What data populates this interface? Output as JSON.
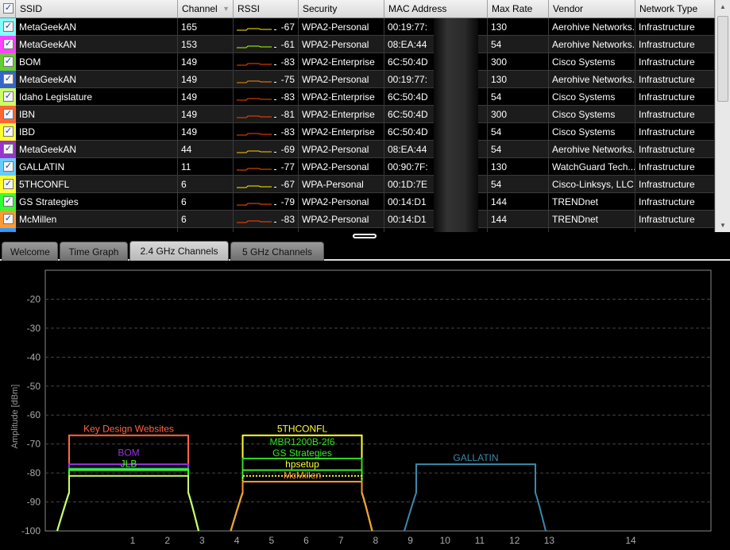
{
  "table": {
    "columns": [
      "SSID",
      "Channel",
      "RSSI",
      "Security",
      "MAC Address",
      "Max Rate",
      "Vendor",
      "Network Type"
    ],
    "rows": [
      {
        "color": "#80ffff",
        "ssid": "MetaGeekAN",
        "channel": "165",
        "rssi": "-67",
        "spark": "#ffee00",
        "security": "WPA2-Personal",
        "mac": "00:19:77:",
        "rate": "130",
        "vendor": "Aerohive Networks...",
        "type": "Infrastructure"
      },
      {
        "color": "#ff44ff",
        "ssid": "MetaGeekAN",
        "channel": "153",
        "rssi": "-61",
        "spark": "#aaff00",
        "security": "WPA2-Personal",
        "mac": "08:EA:44",
        "rate": "54",
        "vendor": "Aerohive Networks...",
        "type": "Infrastructure"
      },
      {
        "color": "#66cc33",
        "ssid": "BOM",
        "channel": "149",
        "rssi": "-83",
        "spark": "#ff4400",
        "security": "WPA2-Enterprise",
        "mac": "6C:50:4D",
        "rate": "300",
        "vendor": "Cisco Systems",
        "type": "Infrastructure"
      },
      {
        "color": "#3366cc",
        "ssid": "MetaGeekAN",
        "channel": "149",
        "rssi": "-75",
        "spark": "#ff8800",
        "security": "WPA2-Personal",
        "mac": "00:19:77:",
        "rate": "130",
        "vendor": "Aerohive Networks...",
        "type": "Infrastructure"
      },
      {
        "color": "#ccff66",
        "ssid": "Idaho Legislature",
        "channel": "149",
        "rssi": "-83",
        "spark": "#ff4400",
        "security": "WPA2-Enterprise",
        "mac": "6C:50:4D",
        "rate": "54",
        "vendor": "Cisco Systems",
        "type": "Infrastructure"
      },
      {
        "color": "#ff6633",
        "ssid": "IBN",
        "channel": "149",
        "rssi": "-81",
        "spark": "#ff4400",
        "security": "WPA2-Enterprise",
        "mac": "6C:50:4D",
        "rate": "300",
        "vendor": "Cisco Systems",
        "type": "Infrastructure"
      },
      {
        "color": "#ffff33",
        "ssid": "IBD",
        "channel": "149",
        "rssi": "-83",
        "spark": "#ff4400",
        "security": "WPA2-Enterprise",
        "mac": "6C:50:4D",
        "rate": "54",
        "vendor": "Cisco Systems",
        "type": "Infrastructure"
      },
      {
        "color": "#9933cc",
        "ssid": "MetaGeekAN",
        "channel": "44",
        "rssi": "-69",
        "spark": "#ffcc00",
        "security": "WPA2-Personal",
        "mac": "08:EA:44",
        "rate": "54",
        "vendor": "Aerohive Networks...",
        "type": "Infrastructure"
      },
      {
        "color": "#66ccff",
        "ssid": "GALLATIN",
        "channel": "11",
        "rssi": "-77",
        "spark": "#ff5500",
        "security": "WPA2-Personal",
        "mac": "00:90:7F:",
        "rate": "130",
        "vendor": "WatchGuard Tech...",
        "type": "Infrastructure"
      },
      {
        "color": "#ffff33",
        "ssid": "5THCONFL",
        "channel": "6",
        "rssi": "-67",
        "spark": "#ffee00",
        "security": "WPA-Personal",
        "mac": "00:1D:7E",
        "rate": "54",
        "vendor": "Cisco-Linksys, LLC",
        "type": "Infrastructure"
      },
      {
        "color": "#33ff33",
        "ssid": "GS Strategies",
        "channel": "6",
        "rssi": "-79",
        "spark": "#ff5500",
        "security": "WPA2-Personal",
        "mac": "00:14:D1",
        "rate": "144",
        "vendor": "TRENDnet",
        "type": "Infrastructure"
      },
      {
        "color": "#ff9933",
        "ssid": "McMillen",
        "channel": "6",
        "rssi": "-83",
        "spark": "#ff4400",
        "security": "WPA2-Personal",
        "mac": "00:14:D1",
        "rate": "144",
        "vendor": "TRENDnet",
        "type": "Infrastructure"
      },
      {
        "color": "#3399ff",
        "ssid": "",
        "channel": "",
        "rssi": "",
        "spark": "",
        "security": "",
        "mac": "",
        "rate": "",
        "vendor": "",
        "type": ""
      }
    ]
  },
  "tabs": [
    {
      "label": "Welcome"
    },
    {
      "label": "Time Graph"
    },
    {
      "label": "2.4 GHz Channels",
      "active": true
    },
    {
      "label": "5 GHz Channels"
    }
  ],
  "chart_data": {
    "type": "area",
    "ylabel": "Amplitude [dBm]",
    "ylim": [
      -100,
      -10
    ],
    "yticks": [
      -20,
      -30,
      -40,
      -50,
      -60,
      -70,
      -80,
      -90,
      -100
    ],
    "xticks": [
      1,
      2,
      3,
      4,
      5,
      6,
      7,
      8,
      9,
      10,
      11,
      12,
      13,
      14
    ],
    "grid": true,
    "networks": [
      {
        "ssid": "Key Design Websites",
        "channel": 1,
        "rssi": -67,
        "color": "#ff6644"
      },
      {
        "ssid": "BOM",
        "channel": 1,
        "rssi": -77,
        "color": "#9933dd"
      },
      {
        "ssid": "",
        "channel": 1,
        "rssi": -78.5,
        "color": "#33cc66"
      },
      {
        "ssid": "",
        "channel": 1,
        "rssi": -79,
        "color": "#3388dd"
      },
      {
        "ssid": "JLB",
        "channel": 1,
        "rssi": -79,
        "color": "#44ff22"
      },
      {
        "ssid": "",
        "channel": 1,
        "rssi": -81,
        "color": "#ccff66"
      },
      {
        "ssid": "5THCONFL",
        "channel": 6,
        "rssi": -67,
        "color": "#ffff33"
      },
      {
        "ssid": "MBR1200B-2f6",
        "channel": 6,
        "rssi": -75,
        "color": "#33dd22"
      },
      {
        "ssid": "GS Strategies",
        "channel": 6,
        "rssi": -79,
        "color": "#33ee22"
      },
      {
        "ssid": "hpsetup",
        "channel": 6,
        "rssi": -81,
        "color": "#ffff33",
        "dotted": true
      },
      {
        "ssid": "McMillen",
        "channel": 6,
        "rssi": -83,
        "color": "#ff9933"
      },
      {
        "ssid": "GALLATIN",
        "channel": 11,
        "rssi": -77,
        "color": "#3a8aaa"
      }
    ]
  }
}
